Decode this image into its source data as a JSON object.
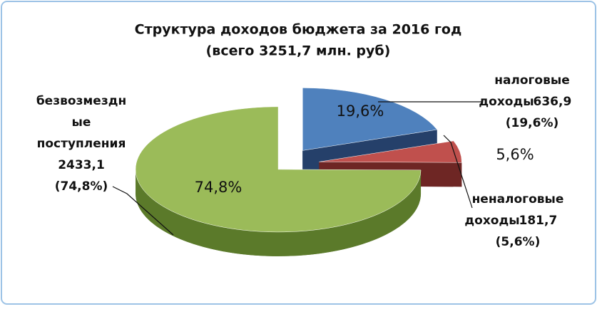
{
  "chart_data": {
    "type": "pie3d",
    "title": "Структура доходов бюджета за 2016 год",
    "subtitle": "(всего 3251,7 млн. руб)",
    "categories": [
      "налоговые\nдоходы",
      "неналоговые\nдоходы",
      "безвозмездн\nые\nпоступления"
    ],
    "values": [
      636.9,
      181.7,
      2433.1
    ],
    "value_labels": [
      "636,9",
      "181,7",
      "2433,1"
    ],
    "percent_labels": [
      "19,6%",
      "5,6%",
      "74,8%"
    ],
    "callout_percent_labels": [
      "(19,6%)",
      "(5,6%)",
      "(74,8%)"
    ],
    "colors": [
      "#4f81bd",
      "#c0504d",
      "#9bbb59"
    ],
    "side_colors": [
      "#25406a",
      "#6e2624",
      "#5b7a2a"
    ]
  }
}
